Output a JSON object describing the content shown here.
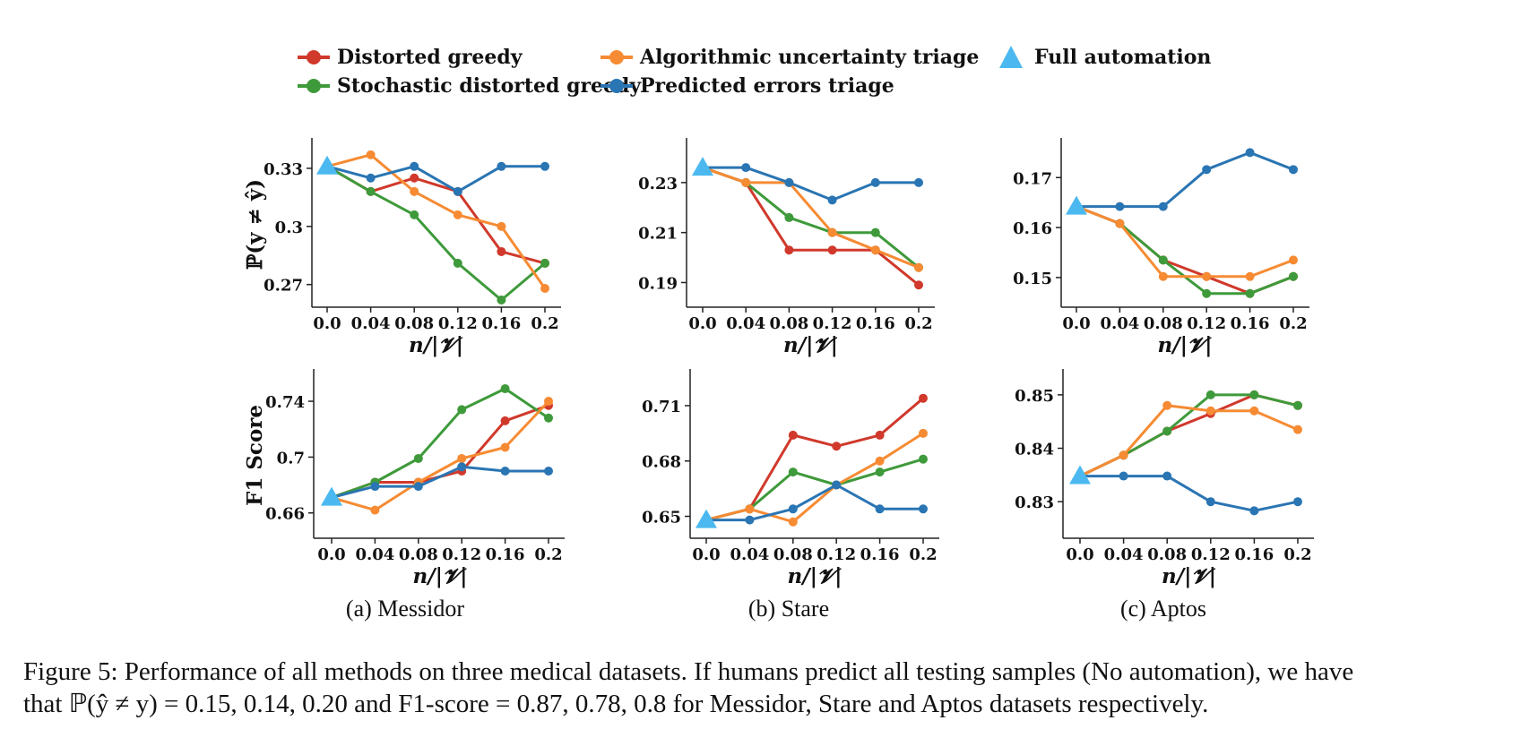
{
  "colors": {
    "distorted_greedy": "#d0392b",
    "stochastic_distorted_greedy": "#3e9a3a",
    "algorithmic_uncertainty_triage": "#f68b33",
    "predicted_errors_triage": "#2a75b3",
    "full_automation": "#4bb9f0"
  },
  "legend": {
    "distorted_greedy": "Distorted greedy",
    "stochastic_distorted_greedy": "Stochastic distorted greedy",
    "algorithmic_uncertainty_triage": "Algorithmic uncertainty triage",
    "predicted_errors_triage": "Predicted errors triage",
    "full_automation": "Full automation"
  },
  "subcaptions": [
    "(a) Messidor",
    "(b) Stare",
    "(c) Aptos"
  ],
  "caption": {
    "line1": "Figure 5: Performance of all methods on three medical datasets. If humans predict all testing samples (No automation), we have",
    "line2": "that ℙ(ŷ ≠ y) = 0.15, 0.14, 0.20 and F1-score = 0.87, 0.78, 0.8 for Messidor, Stare and Aptos datasets respectively."
  },
  "chart_data": [
    {
      "type": "line",
      "dataset": "Messidor",
      "ylabel": "ℙ(y ≠ ŷ)",
      "xlabel": "n/|𝓥|",
      "x": [
        0.0,
        0.04,
        0.08,
        0.12,
        0.16,
        0.2
      ],
      "xticks": [
        "0.0",
        "0.04",
        "0.08",
        "0.12",
        "0.16",
        "0.2"
      ],
      "yticks": [
        "0.27",
        "0.3",
        "0.33"
      ],
      "ytick_values": [
        0.27,
        0.3,
        0.33
      ],
      "ylim": [
        0.262,
        0.342
      ],
      "full_automation": 0.331,
      "series": [
        {
          "name": "Distorted greedy",
          "color_key": "distorted_greedy",
          "values": [
            0.331,
            0.318,
            0.325,
            0.318,
            0.287,
            0.281
          ]
        },
        {
          "name": "Stochastic distorted greedy",
          "color_key": "stochastic_distorted_greedy",
          "values": [
            0.331,
            0.318,
            0.306,
            0.281,
            0.262,
            0.281
          ]
        },
        {
          "name": "Algorithmic uncertainty triage",
          "color_key": "algorithmic_uncertainty_triage",
          "values": [
            0.331,
            0.337,
            0.318,
            0.306,
            0.3,
            0.268
          ]
        },
        {
          "name": "Predicted errors triage",
          "color_key": "predicted_errors_triage",
          "values": [
            0.331,
            0.325,
            0.331,
            0.318,
            0.331,
            0.331
          ]
        }
      ]
    },
    {
      "type": "line",
      "dataset": "Stare",
      "ylabel": "",
      "xlabel": "n/|𝓥|",
      "x": [
        0.0,
        0.04,
        0.08,
        0.12,
        0.16,
        0.2
      ],
      "xticks": [
        "0.0",
        "0.04",
        "0.08",
        "0.12",
        "0.16",
        "0.2"
      ],
      "yticks": [
        "0.19",
        "0.21",
        "0.23"
      ],
      "ytick_values": [
        0.19,
        0.21,
        0.23
      ],
      "ylim": [
        0.183,
        0.245
      ],
      "full_automation": 0.236,
      "series": [
        {
          "name": "Distorted greedy",
          "color_key": "distorted_greedy",
          "values": [
            0.236,
            0.23,
            0.203,
            0.203,
            0.203,
            0.189
          ]
        },
        {
          "name": "Stochastic distorted greedy",
          "color_key": "stochastic_distorted_greedy",
          "values": [
            0.236,
            0.23,
            0.216,
            0.21,
            0.21,
            0.196
          ]
        },
        {
          "name": "Algorithmic uncertainty triage",
          "color_key": "algorithmic_uncertainty_triage",
          "values": [
            0.236,
            0.23,
            0.23,
            0.21,
            0.203,
            0.196
          ]
        },
        {
          "name": "Predicted errors triage",
          "color_key": "predicted_errors_triage",
          "values": [
            0.236,
            0.236,
            0.23,
            0.223,
            0.23,
            0.23
          ]
        }
      ]
    },
    {
      "type": "line",
      "dataset": "Aptos",
      "ylabel": "",
      "xlabel": "n/|𝓥|",
      "x": [
        0.0,
        0.04,
        0.08,
        0.12,
        0.16,
        0.2
      ],
      "xticks": [
        "0.0",
        "0.04",
        "0.08",
        "0.12",
        "0.16",
        "0.2"
      ],
      "yticks": [
        "0.15",
        "0.16",
        "0.17"
      ],
      "ytick_values": [
        0.15,
        0.16,
        0.17
      ],
      "ylim": [
        0.1455,
        0.1765
      ],
      "full_automation": 0.1642,
      "series": [
        {
          "name": "Distorted greedy",
          "color_key": "distorted_greedy",
          "values": [
            0.1642,
            0.1608,
            0.1535,
            0.1502,
            0.1468,
            0.1502
          ]
        },
        {
          "name": "Stochastic distorted greedy",
          "color_key": "stochastic_distorted_greedy",
          "values": [
            0.1642,
            0.1608,
            0.1535,
            0.1468,
            0.1468,
            0.1502
          ]
        },
        {
          "name": "Algorithmic uncertainty triage",
          "color_key": "algorithmic_uncertainty_triage",
          "values": [
            0.1642,
            0.1608,
            0.1502,
            0.1502,
            0.1502,
            0.1535
          ]
        },
        {
          "name": "Predicted errors triage",
          "color_key": "predicted_errors_triage",
          "values": [
            0.1642,
            0.1642,
            0.1642,
            0.1716,
            0.175,
            0.1716
          ]
        }
      ]
    },
    {
      "type": "line",
      "dataset": "Messidor",
      "ylabel": "F1 Score",
      "xlabel": "n/|𝓥|",
      "x": [
        0.0,
        0.04,
        0.08,
        0.12,
        0.16,
        0.2
      ],
      "xticks": [
        "0.0",
        "0.04",
        "0.08",
        "0.12",
        "0.16",
        "0.2"
      ],
      "yticks": [
        "0.66",
        "0.7",
        "0.74"
      ],
      "ytick_values": [
        0.66,
        0.7,
        0.74
      ],
      "ylim": [
        0.647,
        0.758
      ],
      "full_automation": 0.671,
      "series": [
        {
          "name": "Distorted greedy",
          "color_key": "distorted_greedy",
          "values": [
            0.671,
            0.682,
            0.682,
            0.69,
            0.726,
            0.737
          ]
        },
        {
          "name": "Stochastic distorted greedy",
          "color_key": "stochastic_distorted_greedy",
          "values": [
            0.671,
            0.682,
            0.699,
            0.734,
            0.749,
            0.728
          ]
        },
        {
          "name": "Algorithmic uncertainty triage",
          "color_key": "algorithmic_uncertainty_triage",
          "values": [
            0.671,
            0.662,
            0.682,
            0.699,
            0.707,
            0.74
          ]
        },
        {
          "name": "Predicted errors triage",
          "color_key": "predicted_errors_triage",
          "values": [
            0.671,
            0.679,
            0.679,
            0.693,
            0.69,
            0.69
          ]
        }
      ]
    },
    {
      "type": "line",
      "dataset": "Stare",
      "ylabel": "",
      "xlabel": "n/|𝓥|",
      "x": [
        0.0,
        0.04,
        0.08,
        0.12,
        0.16,
        0.2
      ],
      "xticks": [
        "0.0",
        "0.04",
        "0.08",
        "0.12",
        "0.16",
        "0.2"
      ],
      "yticks": [
        "0.65",
        "0.68",
        "0.71"
      ],
      "ytick_values": [
        0.65,
        0.68,
        0.71
      ],
      "ylim": [
        0.642,
        0.726
      ],
      "full_automation": 0.648,
      "series": [
        {
          "name": "Distorted greedy",
          "color_key": "distorted_greedy",
          "values": [
            0.648,
            0.654,
            0.694,
            0.688,
            0.694,
            0.714
          ]
        },
        {
          "name": "Stochastic distorted greedy",
          "color_key": "stochastic_distorted_greedy",
          "values": [
            0.648,
            0.654,
            0.674,
            0.667,
            0.674,
            0.681
          ]
        },
        {
          "name": "Algorithmic uncertainty triage",
          "color_key": "algorithmic_uncertainty_triage",
          "values": [
            0.648,
            0.654,
            0.647,
            0.667,
            0.68,
            0.695
          ]
        },
        {
          "name": "Predicted errors triage",
          "color_key": "predicted_errors_triage",
          "values": [
            0.648,
            0.648,
            0.654,
            0.667,
            0.654,
            0.654
          ]
        }
      ]
    },
    {
      "type": "line",
      "dataset": "Aptos",
      "ylabel": "",
      "xlabel": "n/|𝓥|",
      "x": [
        0.0,
        0.04,
        0.08,
        0.12,
        0.16,
        0.2
      ],
      "xticks": [
        "0.0",
        "0.04",
        "0.08",
        "0.12",
        "0.16",
        "0.2"
      ],
      "yticks": [
        "0.83",
        "0.84",
        "0.85"
      ],
      "ytick_values": [
        0.83,
        0.84,
        0.85
      ],
      "ylim": [
        0.8245,
        0.8535
      ],
      "full_automation": 0.8348,
      "series": [
        {
          "name": "Distorted greedy",
          "color_key": "distorted_greedy",
          "values": [
            0.8348,
            0.8387,
            0.8432,
            0.8465,
            0.85,
            0.848
          ]
        },
        {
          "name": "Stochastic distorted greedy",
          "color_key": "stochastic_distorted_greedy",
          "values": [
            0.8348,
            0.8387,
            0.8432,
            0.85,
            0.85,
            0.848
          ]
        },
        {
          "name": "Algorithmic uncertainty triage",
          "color_key": "algorithmic_uncertainty_triage",
          "values": [
            0.8348,
            0.8387,
            0.848,
            0.847,
            0.847,
            0.8435
          ]
        },
        {
          "name": "Predicted errors triage",
          "color_key": "predicted_errors_triage",
          "values": [
            0.8348,
            0.8348,
            0.8348,
            0.83,
            0.8283,
            0.83
          ]
        }
      ]
    }
  ]
}
